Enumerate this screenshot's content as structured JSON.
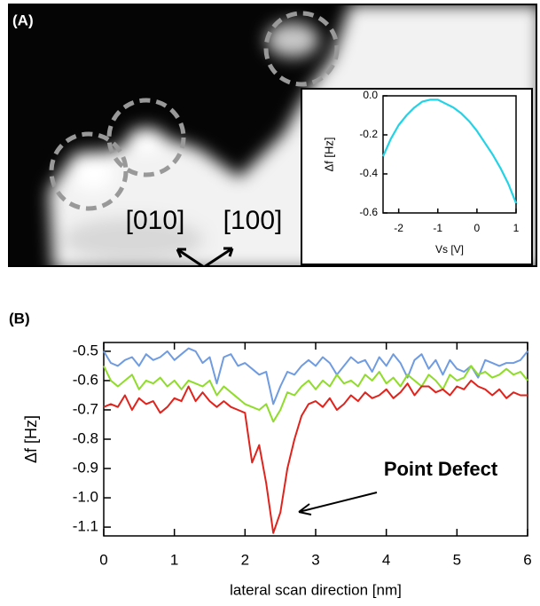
{
  "image": {
    "label": "(A)",
    "directions": [
      "[010]",
      "[100]"
    ]
  },
  "chart_data": [
    {
      "type": "line",
      "ylabel": "Δf [Hz]",
      "xlabel": "Vs [V]",
      "x": [
        -2.4,
        -2.2,
        -2.0,
        -1.8,
        -1.6,
        -1.4,
        -1.2,
        -1.0,
        -0.8,
        -0.6,
        -0.4,
        -0.2,
        0,
        0.2,
        0.4,
        0.6,
        0.8,
        1.0
      ],
      "series": [
        {
          "color": "#22d3e6",
          "values": [
            -0.31,
            -0.22,
            -0.15,
            -0.1,
            -0.06,
            -0.03,
            -0.02,
            -0.02,
            -0.04,
            -0.06,
            -0.09,
            -0.13,
            -0.18,
            -0.24,
            -0.3,
            -0.37,
            -0.45,
            -0.55
          ]
        }
      ],
      "xlim": [
        -2.4,
        1
      ],
      "ylim": [
        -0.6,
        0
      ],
      "xticks": [
        -2,
        -1,
        0,
        1
      ],
      "yticks": [
        {
          "value": 0,
          "label": "0.0"
        },
        -0.2,
        -0.4,
        -0.6
      ]
    },
    {
      "type": "line",
      "panel_label": "(B)",
      "ylabel": "Δf [Hz]",
      "xlabel": "lateral scan direction [nm]",
      "annotation": "Point Defect",
      "x": [
        0,
        0.1,
        0.2,
        0.3,
        0.4,
        0.5,
        0.6,
        0.7,
        0.8,
        0.9,
        1,
        1.1,
        1.2,
        1.3,
        1.4,
        1.5,
        1.6,
        1.7,
        1.8,
        1.9,
        2,
        2.1,
        2.2,
        2.3,
        2.4,
        2.5,
        2.6,
        2.7,
        2.8,
        2.9,
        3,
        3.1,
        3.2,
        3.3,
        3.4,
        3.5,
        3.6,
        3.7,
        3.8,
        3.9,
        4,
        4.1,
        4.2,
        4.3,
        4.4,
        4.5,
        4.6,
        4.7,
        4.8,
        4.9,
        5,
        5.1,
        5.2,
        5.3,
        5.4,
        5.5,
        5.6,
        5.7,
        5.8,
        5.9,
        6
      ],
      "series": [
        {
          "color": "#6f9be0",
          "values": [
            -0.5,
            -0.54,
            -0.55,
            -0.53,
            -0.52,
            -0.55,
            -0.51,
            -0.53,
            -0.52,
            -0.5,
            -0.53,
            -0.51,
            -0.49,
            -0.5,
            -0.54,
            -0.52,
            -0.61,
            -0.52,
            -0.51,
            -0.55,
            -0.54,
            -0.56,
            -0.58,
            -0.57,
            -0.68,
            -0.62,
            -0.57,
            -0.58,
            -0.55,
            -0.53,
            -0.55,
            -0.52,
            -0.54,
            -0.58,
            -0.55,
            -0.52,
            -0.54,
            -0.53,
            -0.57,
            -0.52,
            -0.55,
            -0.51,
            -0.54,
            -0.59,
            -0.53,
            -0.51,
            -0.56,
            -0.53,
            -0.58,
            -0.53,
            -0.56,
            -0.57,
            -0.55,
            -0.59,
            -0.53,
            -0.54,
            -0.55,
            -0.54,
            -0.54,
            -0.53,
            -0.5
          ]
        },
        {
          "color": "#8fdc2a",
          "values": [
            -0.55,
            -0.6,
            -0.62,
            -0.6,
            -0.58,
            -0.63,
            -0.6,
            -0.61,
            -0.59,
            -0.62,
            -0.6,
            -0.63,
            -0.6,
            -0.61,
            -0.62,
            -0.6,
            -0.65,
            -0.62,
            -0.64,
            -0.66,
            -0.68,
            -0.69,
            -0.7,
            -0.68,
            -0.74,
            -0.7,
            -0.64,
            -0.65,
            -0.62,
            -0.6,
            -0.63,
            -0.6,
            -0.62,
            -0.58,
            -0.61,
            -0.6,
            -0.62,
            -0.58,
            -0.6,
            -0.57,
            -0.61,
            -0.59,
            -0.62,
            -0.58,
            -0.6,
            -0.62,
            -0.58,
            -0.6,
            -0.63,
            -0.58,
            -0.6,
            -0.59,
            -0.55,
            -0.58,
            -0.57,
            -0.59,
            -0.58,
            -0.56,
            -0.58,
            -0.57,
            -0.6
          ]
        },
        {
          "color": "#e0231c",
          "values": [
            -0.69,
            -0.68,
            -0.69,
            -0.65,
            -0.7,
            -0.66,
            -0.68,
            -0.67,
            -0.71,
            -0.69,
            -0.66,
            -0.67,
            -0.62,
            -0.67,
            -0.64,
            -0.67,
            -0.69,
            -0.67,
            -0.69,
            -0.7,
            -0.71,
            -0.88,
            -0.82,
            -0.95,
            -1.12,
            -1.05,
            -0.9,
            -0.8,
            -0.72,
            -0.68,
            -0.67,
            -0.69,
            -0.66,
            -0.7,
            -0.68,
            -0.65,
            -0.67,
            -0.64,
            -0.66,
            -0.65,
            -0.63,
            -0.66,
            -0.64,
            -0.61,
            -0.65,
            -0.62,
            -0.62,
            -0.64,
            -0.63,
            -0.65,
            -0.62,
            -0.63,
            -0.6,
            -0.62,
            -0.63,
            -0.65,
            -0.63,
            -0.66,
            -0.64,
            -0.65,
            -0.65
          ]
        }
      ],
      "xlim": [
        0,
        6
      ],
      "ylim": [
        -1.13,
        -0.47
      ],
      "xticks": [
        0,
        1,
        2,
        3,
        4,
        5,
        6
      ],
      "yticks": [
        -0.5,
        -0.6,
        -0.7,
        -0.8,
        -0.9,
        {
          "value": -1,
          "label": "-1.0"
        },
        -1.1
      ]
    }
  ]
}
